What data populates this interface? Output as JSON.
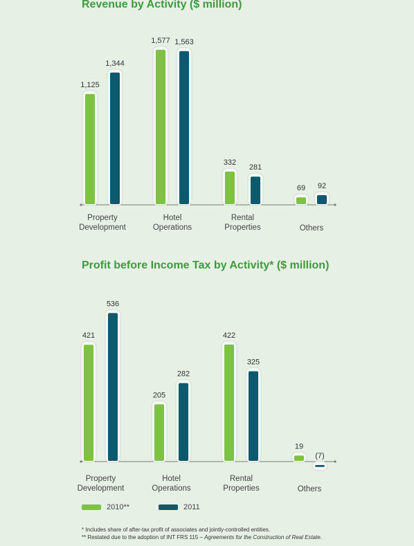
{
  "chart_data": [
    {
      "type": "bar",
      "title": "Revenue by Activity ($ million)",
      "categories": [
        "Property Development",
        "Hotel Operations",
        "Rental Properties",
        "Others"
      ],
      "series": [
        {
          "name": "2010**",
          "values": [
            1125,
            1577,
            332,
            69
          ],
          "labels": [
            "1,125",
            "1,577",
            "332",
            "69"
          ]
        },
        {
          "name": "2011",
          "values": [
            1344,
            1563,
            281,
            92
          ],
          "labels": [
            "1,344",
            "1,563",
            "281",
            "92"
          ]
        }
      ]
    },
    {
      "type": "bar",
      "title": "Profit before Income Tax by Activity* ($ million)",
      "categories": [
        "Property Development",
        "Hotel Operations",
        "Rental Properties",
        "Others"
      ],
      "series": [
        {
          "name": "2010**",
          "values": [
            421,
            205,
            422,
            19
          ],
          "labels": [
            "421",
            "205",
            "422",
            "19"
          ]
        },
        {
          "name": "2011",
          "values": [
            536,
            282,
            325,
            -7
          ],
          "labels": [
            "536",
            "282",
            "325",
            "(7)"
          ]
        }
      ]
    }
  ],
  "category_lines": [
    [
      "Property",
      "Development"
    ],
    [
      "Hotel",
      "Operations"
    ],
    [
      "Rental",
      "Properties"
    ],
    [
      "Others"
    ]
  ],
  "colors": {
    "series_2010": "#7dc242",
    "series_2011": "#0d5a6e",
    "title": "#3f9a3e",
    "axis": "#7a7a7a"
  },
  "legend": {
    "item1": "2010**",
    "item2": "2011"
  },
  "footnotes": {
    "note1": "*   Includes share of after-tax profit of associates and jointly-controlled entities.",
    "note2_prefix": "** Restated due to the adoption of INT FRS 115 – ",
    "note2_italic": "Agreements for the Construction of Real Estate",
    "note2_suffix": "."
  }
}
